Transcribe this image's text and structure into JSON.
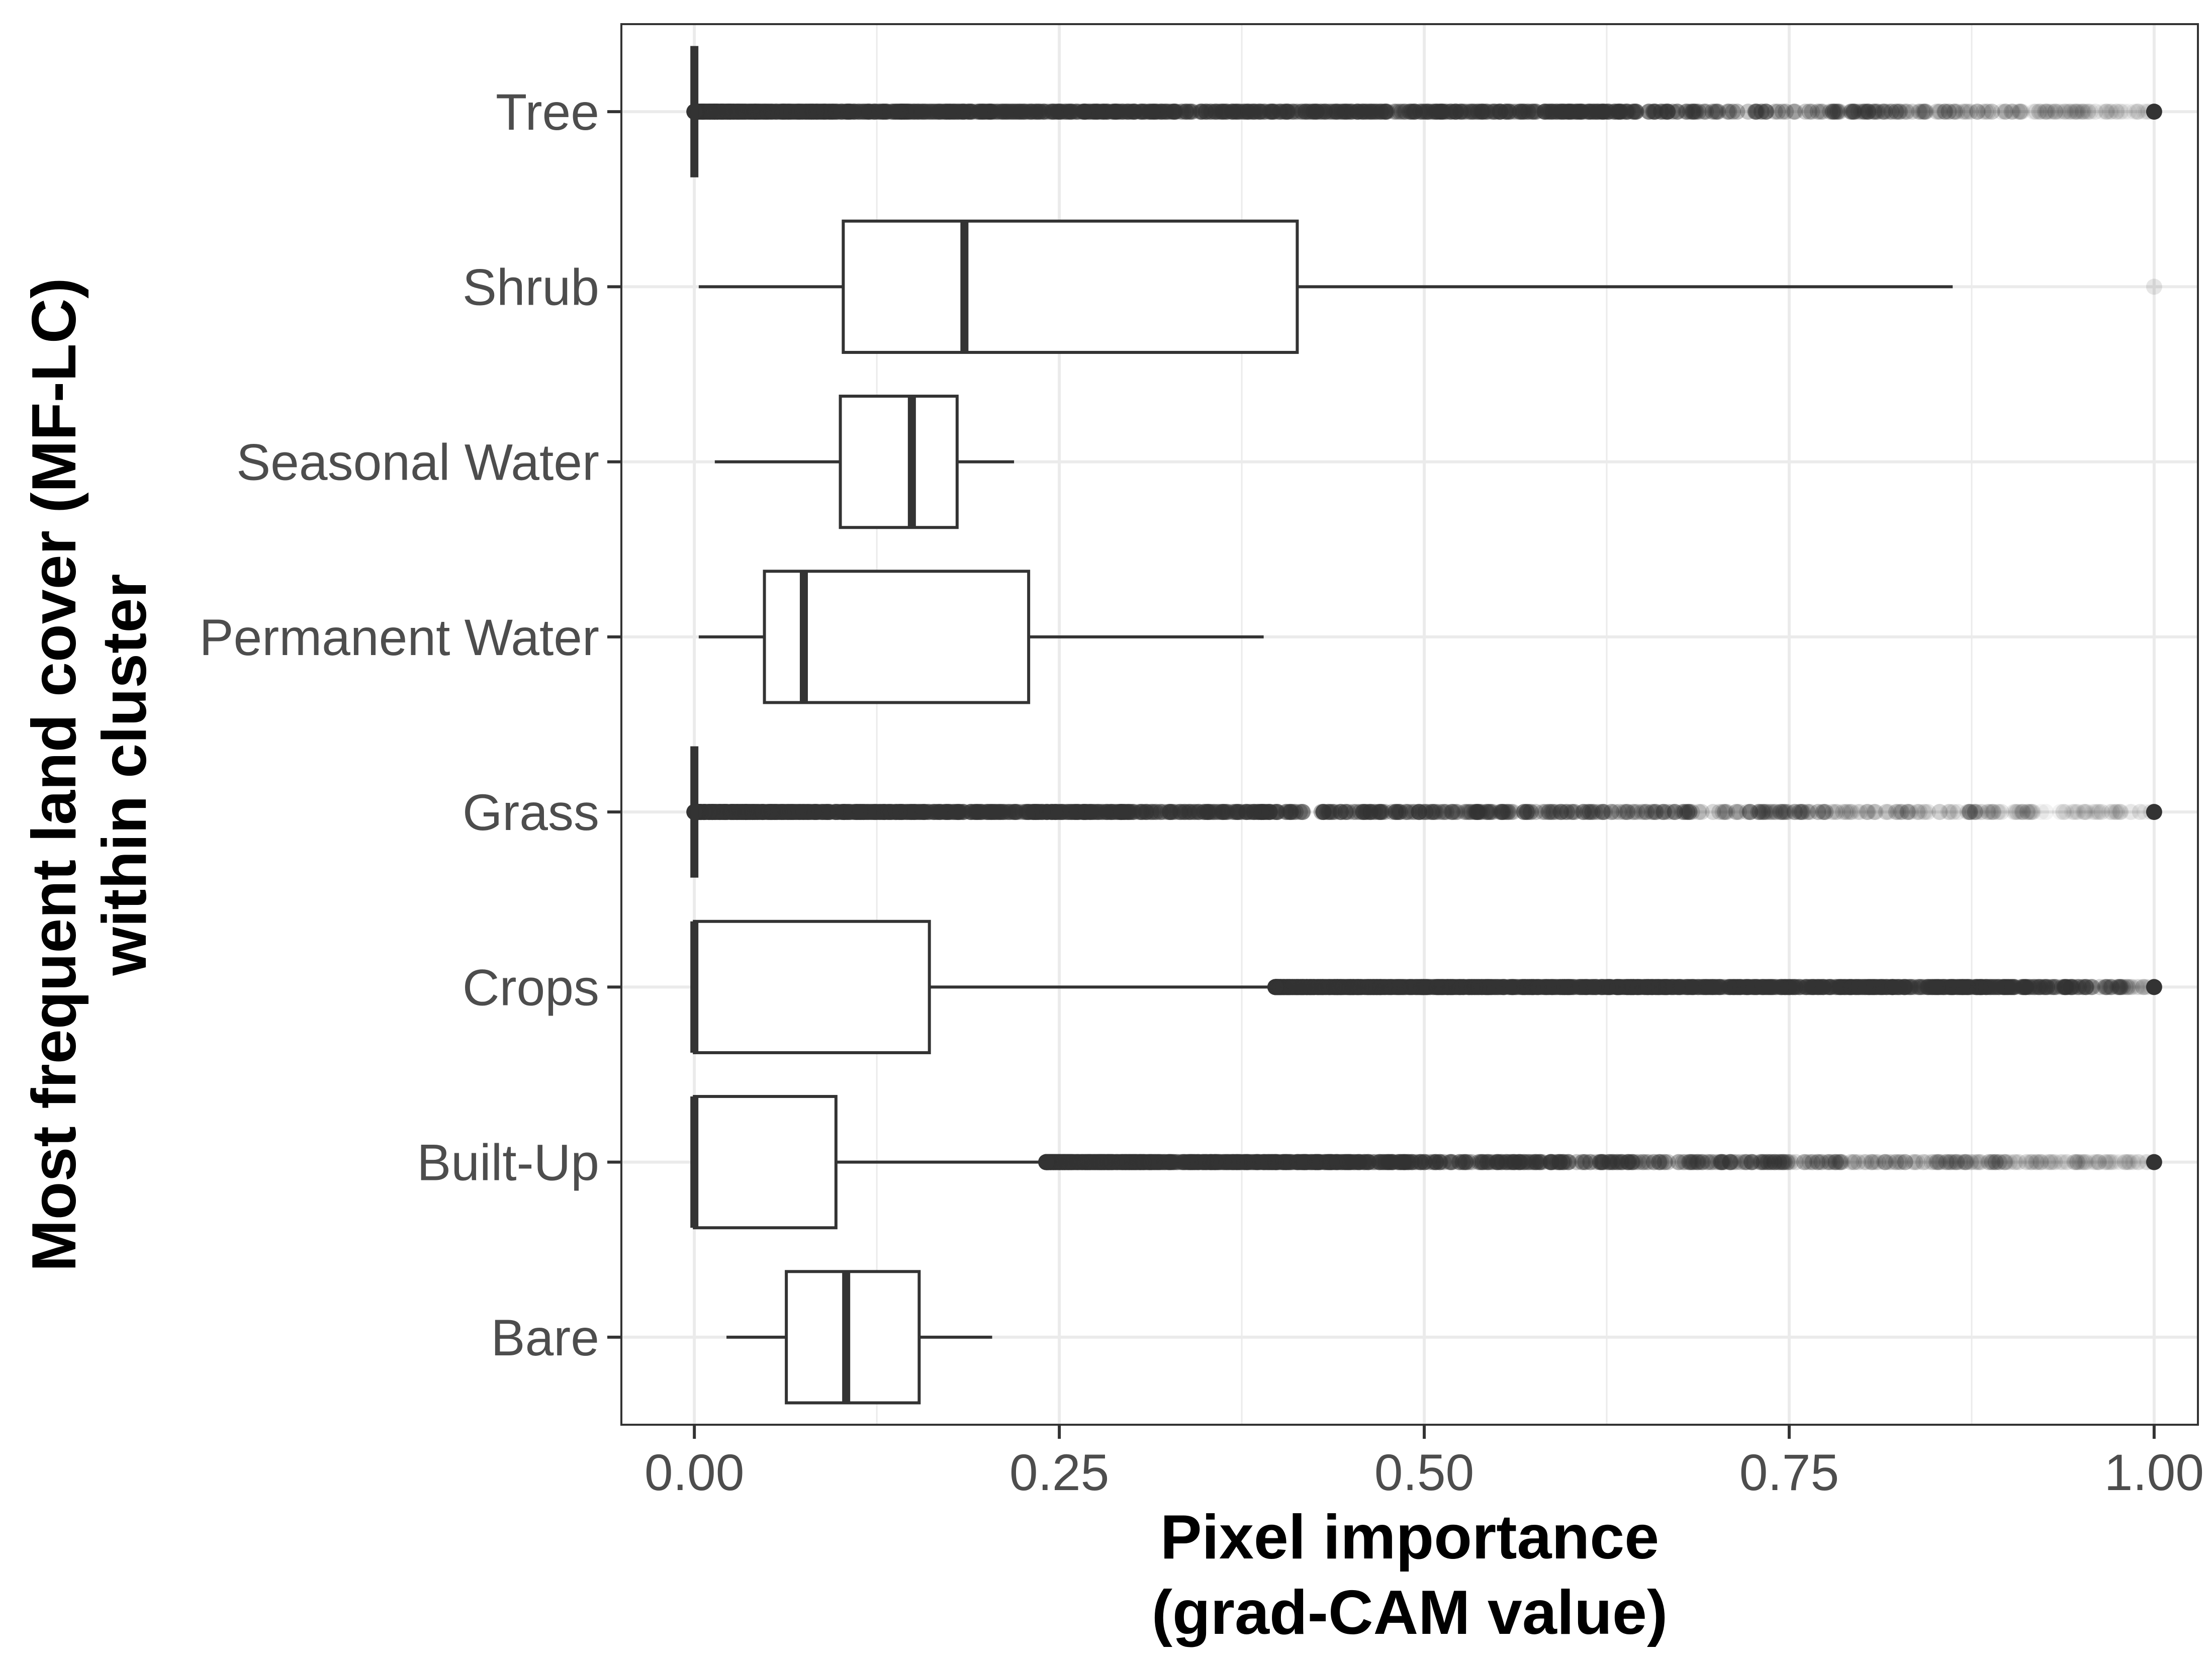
{
  "chart_data": {
    "type": "boxplot",
    "orientation": "horizontal",
    "title": "",
    "xlabel": [
      "Pixel importance",
      "(grad-CAM value)"
    ],
    "ylabel": [
      "Most frequent land cover (MF-LC)",
      "within cluster"
    ],
    "xlim": [
      -0.05,
      1.03
    ],
    "x_ticks": [
      0.0,
      0.25,
      0.5,
      0.75,
      1.0
    ],
    "x_tick_labels": [
      "0.00",
      "0.25",
      "0.50",
      "0.75",
      "1.00"
    ],
    "grid": true,
    "legend": "none",
    "categories": [
      "Tree",
      "Shrub",
      "Seasonal Water",
      "Permanent Water",
      "Grass",
      "Crops",
      "Built-Up",
      "Bare"
    ],
    "boxes": [
      {
        "category": "Tree",
        "whisker_low": 0.0,
        "q1": 0.0,
        "median": 0.0,
        "q3": 0.0,
        "whisker_high": 0.0,
        "outlier_range": [
          0.0,
          1.0
        ],
        "outlier_fade_start": 0.65
      },
      {
        "category": "Shrub",
        "whisker_low": 0.003,
        "q1": 0.102,
        "median": 0.185,
        "q3": 0.413,
        "whisker_high": 0.862,
        "outliers": [
          1.0
        ]
      },
      {
        "category": "Seasonal Water",
        "whisker_low": 0.014,
        "q1": 0.1,
        "median": 0.149,
        "q3": 0.18,
        "whisker_high": 0.219
      },
      {
        "category": "Permanent Water",
        "whisker_low": 0.003,
        "q1": 0.048,
        "median": 0.075,
        "q3": 0.229,
        "whisker_high": 0.39
      },
      {
        "category": "Grass",
        "whisker_low": 0.0,
        "q1": 0.0,
        "median": 0.0,
        "q3": 0.0,
        "whisker_high": 0.0,
        "outlier_range": [
          0.0,
          1.0
        ],
        "outlier_fade_start": 0.4
      },
      {
        "category": "Crops",
        "whisker_low": 0.0,
        "q1": 0.0,
        "median": 0.0,
        "q3": 0.161,
        "whisker_high": 0.398,
        "outlier_range": [
          0.398,
          1.0
        ],
        "outlier_fade_start": 0.93
      },
      {
        "category": "Built-Up",
        "whisker_low": 0.0,
        "q1": 0.0,
        "median": 0.0,
        "q3": 0.097,
        "whisker_high": 0.241,
        "outlier_range": [
          0.241,
          1.0
        ],
        "outlier_fade_start": 0.45
      },
      {
        "category": "Bare",
        "whisker_low": 0.022,
        "q1": 0.063,
        "median": 0.104,
        "q3": 0.154,
        "whisker_high": 0.204
      }
    ],
    "colors": {
      "box_stroke": "#333333",
      "outlier": "#333333",
      "grid": "#ebebeb",
      "panel_border": "#333333",
      "tick_label": "#4d4d4d"
    }
  }
}
